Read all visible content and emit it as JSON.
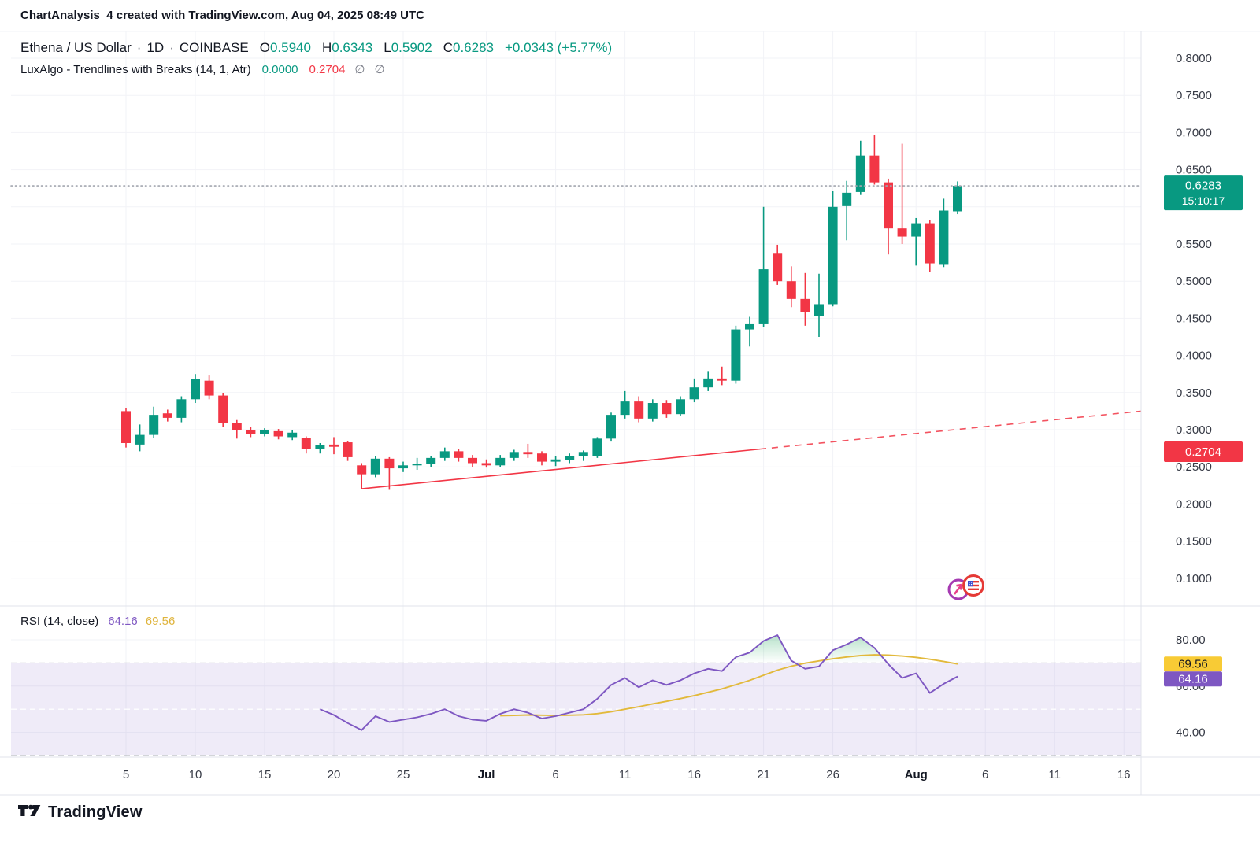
{
  "header": {
    "watermark_title": "ChartAnalysis_4 created with TradingView.com, Aug 04, 2025 08:49 UTC",
    "symbol_line": {
      "symbol": "Ethena / US Dollar",
      "separator": "·",
      "interval": "1D",
      "exchange": "COINBASE",
      "o_label": "O",
      "o": "0.5940",
      "h_label": "H",
      "h": "0.6343",
      "l_label": "L",
      "l": "0.5902",
      "c_label": "C",
      "c": "0.6283",
      "change": "+0.0343 (+5.77%)"
    },
    "indicator_line": {
      "name": "LuxAlgo - Trendlines with Breaks (14, 1, Atr)",
      "value_up": "0.0000",
      "value_down": "0.2704",
      "empty1": "∅",
      "empty2": "∅"
    }
  },
  "rsi_header": {
    "name": "RSI (14, close)",
    "rsi_value": "64.16",
    "ma_value": "69.56"
  },
  "footer": {
    "logo_text": "TradingView"
  },
  "colors": {
    "up": "#089981",
    "down": "#f23645",
    "rsi_line": "#7e57c2",
    "rsi_ma_line": "#e2b93b",
    "rsi_band": "rgba(126,87,194,0.12)",
    "band_dash": "#8f939e",
    "mid_dash": "#ffffff",
    "grid": "#f2f3f7",
    "separator": "#e0e3eb",
    "dotted_price_line": "#a2a6af",
    "axis_text": "#363a45",
    "badge_yellow": "#f8cb35",
    "badge_purple": "#7e57c2",
    "hump_fill": "#22a65c"
  },
  "price_axis": {
    "labels": [
      {
        "text": "0.8000",
        "value": 0.8
      },
      {
        "text": "0.7500",
        "value": 0.75
      },
      {
        "text": "0.7000",
        "value": 0.7
      },
      {
        "text": "0.6500",
        "value": 0.65
      },
      {
        "text": "0.5500",
        "value": 0.55
      },
      {
        "text": "0.5000",
        "value": 0.5
      },
      {
        "text": "0.4500",
        "value": 0.45
      },
      {
        "text": "0.4000",
        "value": 0.4
      },
      {
        "text": "0.3500",
        "value": 0.35
      },
      {
        "text": "0.3000",
        "value": 0.3
      },
      {
        "text": "0.2500",
        "value": 0.25
      },
      {
        "text": "0.2000",
        "value": 0.2
      },
      {
        "text": "0.1500",
        "value": 0.15
      },
      {
        "text": "0.1000",
        "value": 0.1
      }
    ],
    "price_badge": {
      "price": "0.6283",
      "countdown": "15:10:17"
    },
    "trend_badge": {
      "value": "0.2704"
    }
  },
  "rsi_axis": {
    "labels": [
      {
        "text": "80.00",
        "value": 80
      },
      {
        "text": "60.00",
        "value": 60
      },
      {
        "text": "40.00",
        "value": 40
      }
    ],
    "badges": [
      {
        "text": "69.56",
        "value": 69.56,
        "kind": "ma"
      },
      {
        "text": "64.16",
        "value": 64.16,
        "kind": "rsi"
      }
    ]
  },
  "time_axis": {
    "ticks": [
      {
        "label": "5",
        "day": 0
      },
      {
        "label": "10",
        "day": 5
      },
      {
        "label": "15",
        "day": 10
      },
      {
        "label": "20",
        "day": 15
      },
      {
        "label": "25",
        "day": 20
      },
      {
        "label": "Jul",
        "day": 26,
        "bold": true
      },
      {
        "label": "6",
        "day": 31
      },
      {
        "label": "11",
        "day": 36
      },
      {
        "label": "16",
        "day": 41
      },
      {
        "label": "21",
        "day": 46
      },
      {
        "label": "26",
        "day": 51
      },
      {
        "label": "Aug",
        "day": 57,
        "bold": true
      },
      {
        "label": "6",
        "day": 62
      },
      {
        "label": "11",
        "day": 67
      },
      {
        "label": "16",
        "day": 72
      }
    ]
  },
  "chart_data": {
    "type": "candlestick",
    "title": "Ethena / US Dollar",
    "interval": "1D",
    "exchange": "COINBASE",
    "ohlc_last": {
      "o": 0.594,
      "h": 0.6343,
      "l": 0.5902,
      "c": 0.6283,
      "change": "+0.0343 (+5.77%)"
    },
    "last_price": 0.6283,
    "countdown": "15:10:17",
    "price_axis_range": [
      0.1,
      0.8
    ],
    "grid": "on",
    "candles": [
      [
        "Jun 5",
        0.325,
        0.329,
        0.276,
        0.282
      ],
      [
        "Jun 6",
        0.28,
        0.307,
        0.271,
        0.293
      ],
      [
        "Jun 7",
        0.293,
        0.331,
        0.289,
        0.32
      ],
      [
        "Jun 8",
        0.322,
        0.327,
        0.311,
        0.316
      ],
      [
        "Jun 9",
        0.316,
        0.345,
        0.31,
        0.341
      ],
      [
        "Jun 10",
        0.341,
        0.375,
        0.336,
        0.368
      ],
      [
        "Jun 11",
        0.366,
        0.373,
        0.341,
        0.346
      ],
      [
        "Jun 12",
        0.346,
        0.349,
        0.304,
        0.309
      ],
      [
        "Jun 13",
        0.309,
        0.313,
        0.288,
        0.3
      ],
      [
        "Jun 14",
        0.3,
        0.304,
        0.29,
        0.294
      ],
      [
        "Jun 15",
        0.294,
        0.302,
        0.291,
        0.299
      ],
      [
        "Jun 16",
        0.298,
        0.301,
        0.287,
        0.291
      ],
      [
        "Jun 17",
        0.29,
        0.299,
        0.286,
        0.296
      ],
      [
        "Jun 18",
        0.289,
        0.291,
        0.268,
        0.274
      ],
      [
        "Jun 19",
        0.274,
        0.282,
        0.268,
        0.279
      ],
      [
        "Jun 20",
        0.28,
        0.29,
        0.267,
        0.277
      ],
      [
        "Jun 21",
        0.283,
        0.285,
        0.258,
        0.263
      ],
      [
        "Jun 22",
        0.252,
        0.255,
        0.226,
        0.24
      ],
      [
        "Jun 23",
        0.24,
        0.264,
        0.236,
        0.261
      ],
      [
        "Jun 24",
        0.261,
        0.263,
        0.219,
        0.248
      ],
      [
        "Jun 25",
        0.248,
        0.257,
        0.243,
        0.252
      ],
      [
        "Jun 26",
        0.252,
        0.262,
        0.246,
        0.254
      ],
      [
        "Jun 27",
        0.254,
        0.265,
        0.25,
        0.262
      ],
      [
        "Jun 28",
        0.262,
        0.276,
        0.258,
        0.271
      ],
      [
        "Jun 29",
        0.271,
        0.274,
        0.257,
        0.262
      ],
      [
        "Jun 30",
        0.262,
        0.266,
        0.25,
        0.255
      ],
      [
        "Jul 1",
        0.255,
        0.26,
        0.249,
        0.252
      ],
      [
        "Jul 2",
        0.252,
        0.266,
        0.25,
        0.262
      ],
      [
        "Jul 3",
        0.262,
        0.273,
        0.258,
        0.27
      ],
      [
        "Jul 4",
        0.27,
        0.281,
        0.262,
        0.267
      ],
      [
        "Jul 5",
        0.268,
        0.271,
        0.252,
        0.257
      ],
      [
        "Jul 6",
        0.257,
        0.264,
        0.251,
        0.26
      ],
      [
        "Jul 7",
        0.259,
        0.268,
        0.255,
        0.265
      ],
      [
        "Jul 8",
        0.265,
        0.272,
        0.258,
        0.27
      ],
      [
        "Jul 9",
        0.265,
        0.29,
        0.262,
        0.288
      ],
      [
        "Jul 10",
        0.288,
        0.323,
        0.284,
        0.32
      ],
      [
        "Jul 11",
        0.32,
        0.352,
        0.315,
        0.338
      ],
      [
        "Jul 12",
        0.338,
        0.345,
        0.31,
        0.315
      ],
      [
        "Jul 13",
        0.315,
        0.341,
        0.311,
        0.336
      ],
      [
        "Jul 14",
        0.336,
        0.34,
        0.316,
        0.321
      ],
      [
        "Jul 15",
        0.321,
        0.345,
        0.318,
        0.341
      ],
      [
        "Jul 16",
        0.341,
        0.369,
        0.337,
        0.357
      ],
      [
        "Jul 17",
        0.357,
        0.378,
        0.352,
        0.369
      ],
      [
        "Jul 18",
        0.369,
        0.385,
        0.36,
        0.366
      ],
      [
        "Jul 19",
        0.366,
        0.44,
        0.362,
        0.435
      ],
      [
        "Jul 20",
        0.435,
        0.452,
        0.412,
        0.442
      ],
      [
        "Jul 21",
        0.442,
        0.6,
        0.438,
        0.516
      ],
      [
        "Jul 22",
        0.537,
        0.549,
        0.495,
        0.5
      ],
      [
        "Jul 23",
        0.5,
        0.52,
        0.465,
        0.476
      ],
      [
        "Jul 24",
        0.476,
        0.511,
        0.44,
        0.458
      ],
      [
        "Jul 25",
        0.453,
        0.51,
        0.425,
        0.469
      ],
      [
        "Jul 26",
        0.469,
        0.621,
        0.466,
        0.6
      ],
      [
        "Jul 27",
        0.601,
        0.635,
        0.555,
        0.619
      ],
      [
        "Jul 28",
        0.62,
        0.689,
        0.616,
        0.669
      ],
      [
        "Jul 29",
        0.669,
        0.697,
        0.63,
        0.633
      ],
      [
        "Jul 30",
        0.633,
        0.638,
        0.536,
        0.571
      ],
      [
        "Jul 31",
        0.571,
        0.685,
        0.55,
        0.56
      ],
      [
        "Aug 1",
        0.56,
        0.585,
        0.521,
        0.578
      ],
      [
        "Aug 2",
        0.578,
        0.582,
        0.512,
        0.524
      ],
      [
        "Aug 3",
        0.522,
        0.611,
        0.519,
        0.595
      ],
      [
        "Aug 4",
        0.594,
        0.6343,
        0.5902,
        0.6283
      ]
    ],
    "trendline": {
      "name": "LuxAlgo lower trendline",
      "anchor_index": 17,
      "anchor_label": "Jun 22",
      "start_price": 0.2205,
      "tick_high_price": 0.249,
      "end_price_at_right_edge": 0.325,
      "dash_from_x": 965,
      "axis_value": 0.2704
    },
    "rsi": {
      "period": 14,
      "source": "close",
      "overbought": 70,
      "middle": 50,
      "oversold": 30,
      "axis_range": [
        30,
        80
      ],
      "last_rsi": 64.16,
      "last_ma": 69.56,
      "series": [
        [
          14,
          50
        ],
        [
          15,
          47.5
        ],
        [
          16,
          44
        ],
        [
          17,
          41
        ],
        [
          18,
          47
        ],
        [
          19,
          44.5
        ],
        [
          20,
          45.5
        ],
        [
          21,
          46.5
        ],
        [
          22,
          48
        ],
        [
          23,
          50
        ],
        [
          24,
          47
        ],
        [
          25,
          45.5
        ],
        [
          26,
          45
        ],
        [
          27,
          48
        ],
        [
          28,
          50
        ],
        [
          29,
          48.5
        ],
        [
          30,
          46
        ],
        [
          31,
          47
        ],
        [
          32,
          48.5
        ],
        [
          33,
          50
        ],
        [
          34,
          54.5
        ],
        [
          35,
          60.5
        ],
        [
          36,
          63.5
        ],
        [
          37,
          59.5
        ],
        [
          38,
          62.5
        ],
        [
          39,
          60.5
        ],
        [
          40,
          62.5
        ],
        [
          41,
          65.5
        ],
        [
          42,
          67.5
        ],
        [
          43,
          66.5
        ],
        [
          44,
          72.5
        ],
        [
          45,
          74.5
        ],
        [
          46,
          79.5
        ],
        [
          47,
          82
        ],
        [
          48,
          71
        ],
        [
          49,
          67.5
        ],
        [
          50,
          68.5
        ],
        [
          51,
          75.5
        ],
        [
          52,
          78
        ],
        [
          53,
          81
        ],
        [
          54,
          76.5
        ],
        [
          55,
          69.5
        ],
        [
          56,
          63.5
        ],
        [
          57,
          65.5
        ],
        [
          58,
          57
        ],
        [
          59,
          61
        ],
        [
          60,
          64.16
        ]
      ],
      "ma_series": [
        [
          27,
          47.2
        ],
        [
          28,
          47.3
        ],
        [
          29,
          47.5
        ],
        [
          30,
          47.4
        ],
        [
          31,
          47.3
        ],
        [
          32,
          47.4
        ],
        [
          33,
          47.6
        ],
        [
          34,
          48.1
        ],
        [
          35,
          48.9
        ],
        [
          36,
          50
        ],
        [
          37,
          51.1
        ],
        [
          38,
          52.3
        ],
        [
          39,
          53.4
        ],
        [
          40,
          54.6
        ],
        [
          41,
          55.9
        ],
        [
          42,
          57.3
        ],
        [
          43,
          58.8
        ],
        [
          44,
          60.6
        ],
        [
          45,
          62.5
        ],
        [
          46,
          64.7
        ],
        [
          47,
          66.9
        ],
        [
          48,
          68.6
        ],
        [
          49,
          69.9
        ],
        [
          50,
          70.9
        ],
        [
          51,
          71.8
        ],
        [
          52,
          72.6
        ],
        [
          53,
          73.2
        ],
        [
          54,
          73.5
        ],
        [
          55,
          73.4
        ],
        [
          56,
          73
        ],
        [
          57,
          72.4
        ],
        [
          58,
          71.6
        ],
        [
          59,
          70.6
        ],
        [
          60,
          69.56
        ]
      ]
    }
  },
  "icons": {
    "event_icons": [
      "luxalgo-circle-icon",
      "us-flag-circle-icon"
    ],
    "logo": "tradingview-logo-icon"
  }
}
